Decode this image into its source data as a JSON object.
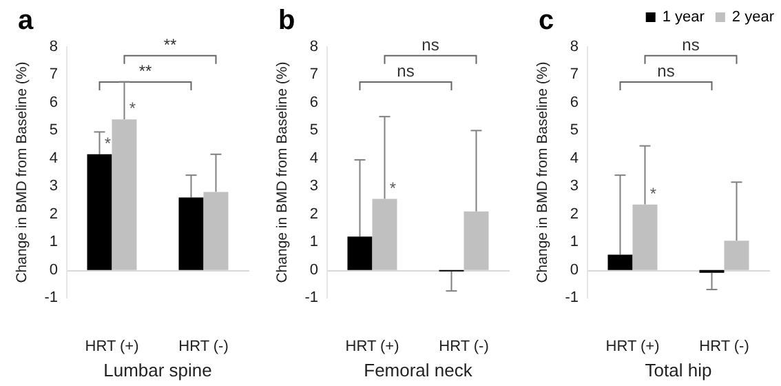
{
  "chart_data": [
    {
      "type": "bar",
      "title": "a",
      "xlabel": "Lumbar spine",
      "ylabel": "Change in BMD from Baseline (%)",
      "categories": [
        "HRT (+)",
        "HRT (-)"
      ],
      "ylim": [
        -1,
        8
      ],
      "yticks": [
        -1,
        0,
        1,
        2,
        3,
        4,
        5,
        6,
        7,
        8
      ],
      "grid": false,
      "legend": false,
      "ref_lines": [
        {
          "axis": "y",
          "value": 0,
          "color": "#d9d9d9"
        }
      ],
      "series": [
        {
          "color": "#000000",
          "values": [
            4.15,
            2.6
          ],
          "errors": [
            [
              4.15,
              4.95
            ],
            [
              2.6,
              3.4
            ]
          ]
        },
        {
          "color": "#c0c0c0",
          "values": [
            5.4,
            2.8
          ],
          "errors": [
            [
              5.4,
              6.75
            ],
            [
              2.8,
              4.15
            ]
          ]
        }
      ],
      "annotations": [
        {
          "text": "*",
          "x": "HRT (+)",
          "y": 4.15
        },
        {
          "text": "*",
          "x": "HRT (+)",
          "y": 5.4
        },
        "**",
        "**"
      ]
    },
    {
      "type": "bar",
      "title": "b",
      "xlabel": "Femoral neck",
      "ylabel": "Change in BMD from Baseline (%)",
      "categories": [
        "HRT (+)",
        "HRT (-)"
      ],
      "ylim": [
        -1,
        8
      ],
      "yticks": [
        -1,
        0,
        1,
        2,
        3,
        4,
        5,
        6,
        7,
        8
      ],
      "grid": false,
      "legend": false,
      "ref_lines": [
        {
          "axis": "y",
          "value": 0,
          "color": "#d9d9d9"
        }
      ],
      "series": [
        {
          "color": "#000000",
          "values": [
            1.2,
            -0.05
          ],
          "errors": [
            [
              1.2,
              3.95
            ],
            [
              -0.75,
              -0.05
            ]
          ]
        },
        {
          "color": "#c0c0c0",
          "values": [
            2.55,
            2.1
          ],
          "errors": [
            [
              2.55,
              5.5
            ],
            [
              2.1,
              5.0
            ]
          ]
        }
      ],
      "annotations": [
        {
          "text": "*",
          "x": "HRT (+)",
          "y": 2.55
        },
        "ns",
        "ns"
      ]
    },
    {
      "type": "bar",
      "title": "c",
      "xlabel": "Total hip",
      "ylabel": "Change in BMD from Baseline (%)",
      "categories": [
        "HRT (+)",
        "HRT (-)"
      ],
      "ylim": [
        -1,
        8
      ],
      "yticks": [
        -1,
        0,
        1,
        2,
        3,
        4,
        5,
        6,
        7,
        8
      ],
      "grid": false,
      "legend": "top right",
      "ref_lines": [
        {
          "axis": "y",
          "value": 0,
          "color": "#d9d9d9"
        }
      ],
      "series": [
        {
          "name": "1 year",
          "color": "#000000",
          "values": [
            0.55,
            -0.1
          ],
          "errors": [
            [
              0.55,
              3.4
            ],
            [
              -0.7,
              -0.1
            ]
          ]
        },
        {
          "name": "2 year",
          "color": "#c0c0c0",
          "values": [
            2.35,
            1.05
          ],
          "errors": [
            [
              2.35,
              4.45
            ],
            [
              1.05,
              3.15
            ]
          ]
        }
      ],
      "annotations": [
        {
          "text": "*",
          "x": "HRT (+)",
          "y": 2.35
        },
        "ns",
        "ns"
      ]
    }
  ]
}
